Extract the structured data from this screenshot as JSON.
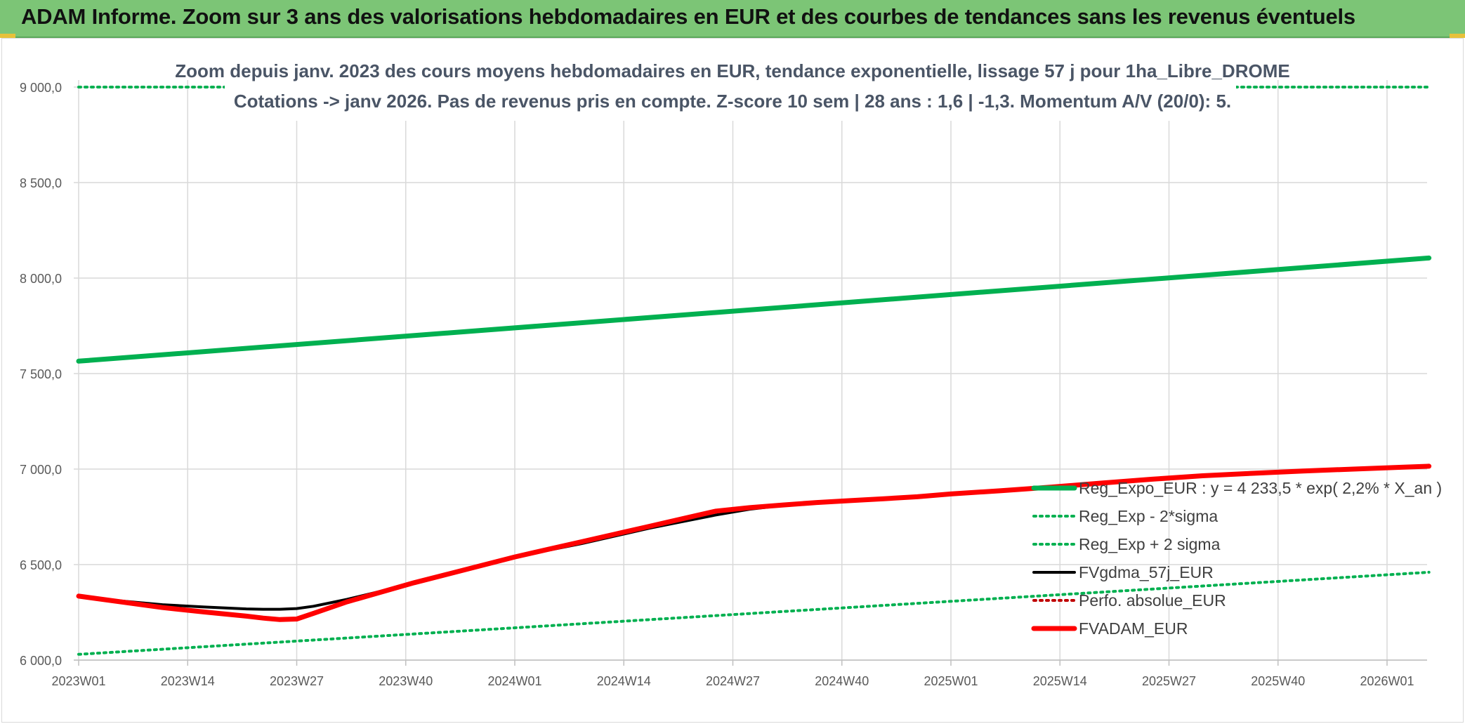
{
  "header": {
    "title": "ADAM Informe. Zoom sur 3 ans des valorisations hebdomadaires en EUR et des courbes de tendances sans les revenus éventuels"
  },
  "colors": {
    "header_bg": "#7cc576",
    "reg_expo": "#00b050",
    "sigma_bands": "#00b050",
    "fvgdma": "#000000",
    "perfo": "#c00000",
    "fvadam": "#ff0000",
    "grid": "#d9d9d9"
  },
  "chart_data": {
    "type": "line",
    "subtitle_line1": "Zoom depuis janv. 2023 des cours moyens hebdomadaires en EUR, tendance exponentielle, lissage 57 j pour 1ha_Libre_DROME",
    "subtitle_line2": "Cotations -> janv 2026. Pas de revenus pris en compte. Z-score 10 sem | 28 ans : 1,6 | -1,3. Momentum A/V (20/0): 5.",
    "ylim": [
      6000,
      9000
    ],
    "y_ticks": [
      "6 000,0",
      "6 500,0",
      "7 000,0",
      "7 500,0",
      "8 000,0",
      "8 500,0",
      "9 000,0"
    ],
    "y_tick_values": [
      6000,
      6500,
      7000,
      7500,
      8000,
      8500,
      9000
    ],
    "x_ticks": [
      "2023W01",
      "2023W14",
      "2023W27",
      "2023W40",
      "2024W01",
      "2024W14",
      "2024W27",
      "2024W40",
      "2025W01",
      "2025W14",
      "2025W27",
      "2025W40",
      "2026W01"
    ],
    "x_tick_weeks": [
      0,
      13,
      26,
      39,
      52,
      65,
      78,
      91,
      104,
      117,
      130,
      143,
      156
    ],
    "x_range_weeks": [
      0,
      161
    ],
    "grid": true,
    "legend_placement": "right",
    "series": [
      {
        "name": "Reg_Expo_EUR : y = 4 233,5 * exp( 2,2% *  X_an )",
        "style": "solid-thick",
        "color": "#00b050",
        "x": [
          0,
          161
        ],
        "y": [
          7565,
          8105
        ]
      },
      {
        "name": "Reg_Exp - 2*sigma",
        "style": "dotted",
        "color": "#00b050",
        "x": [
          0,
          161
        ],
        "y": [
          6030,
          6460
        ]
      },
      {
        "name": "Reg_Exp + 2 sigma",
        "style": "dotted",
        "color": "#00b050",
        "x": [
          0,
          161
        ],
        "y": [
          9000,
          9000
        ]
      },
      {
        "name": "FVgdma_57j_EUR",
        "style": "solid",
        "color": "#000000",
        "x": [
          0,
          5,
          10,
          15,
          20,
          22,
          24,
          26,
          28,
          32,
          36,
          40,
          44,
          48,
          52,
          56,
          60,
          64,
          68,
          72,
          76,
          80,
          84,
          88,
          92,
          96,
          100,
          104,
          110,
          116,
          122,
          128,
          134,
          140,
          146,
          152,
          158,
          161
        ],
        "y": [
          6335,
          6310,
          6290,
          6278,
          6268,
          6266,
          6266,
          6270,
          6282,
          6318,
          6360,
          6405,
          6450,
          6497,
          6540,
          6575,
          6610,
          6650,
          6690,
          6725,
          6760,
          6790,
          6810,
          6823,
          6833,
          6843,
          6852,
          6868,
          6885,
          6904,
          6925,
          6945,
          6962,
          6975,
          6986,
          6997,
          7008,
          7012
        ]
      },
      {
        "name": "Perfo. absolue_EUR",
        "style": "dotted",
        "color": "#c00000",
        "x": [],
        "y": []
      },
      {
        "name": "FVADAM_EUR",
        "style": "solid-thick",
        "color": "#ff0000",
        "x": [
          0,
          5,
          10,
          15,
          20,
          22,
          24,
          26,
          28,
          32,
          36,
          40,
          44,
          48,
          52,
          56,
          60,
          64,
          68,
          72,
          76,
          80,
          84,
          88,
          92,
          96,
          100,
          104,
          110,
          116,
          122,
          128,
          134,
          140,
          146,
          152,
          158,
          161
        ],
        "y": [
          6335,
          6305,
          6275,
          6252,
          6230,
          6220,
          6212,
          6215,
          6245,
          6305,
          6355,
          6405,
          6450,
          6495,
          6540,
          6580,
          6620,
          6660,
          6700,
          6740,
          6780,
          6798,
          6812,
          6825,
          6835,
          6845,
          6855,
          6870,
          6887,
          6906,
          6927,
          6947,
          6965,
          6978,
          6990,
          7000,
          7010,
          7015
        ]
      }
    ]
  }
}
